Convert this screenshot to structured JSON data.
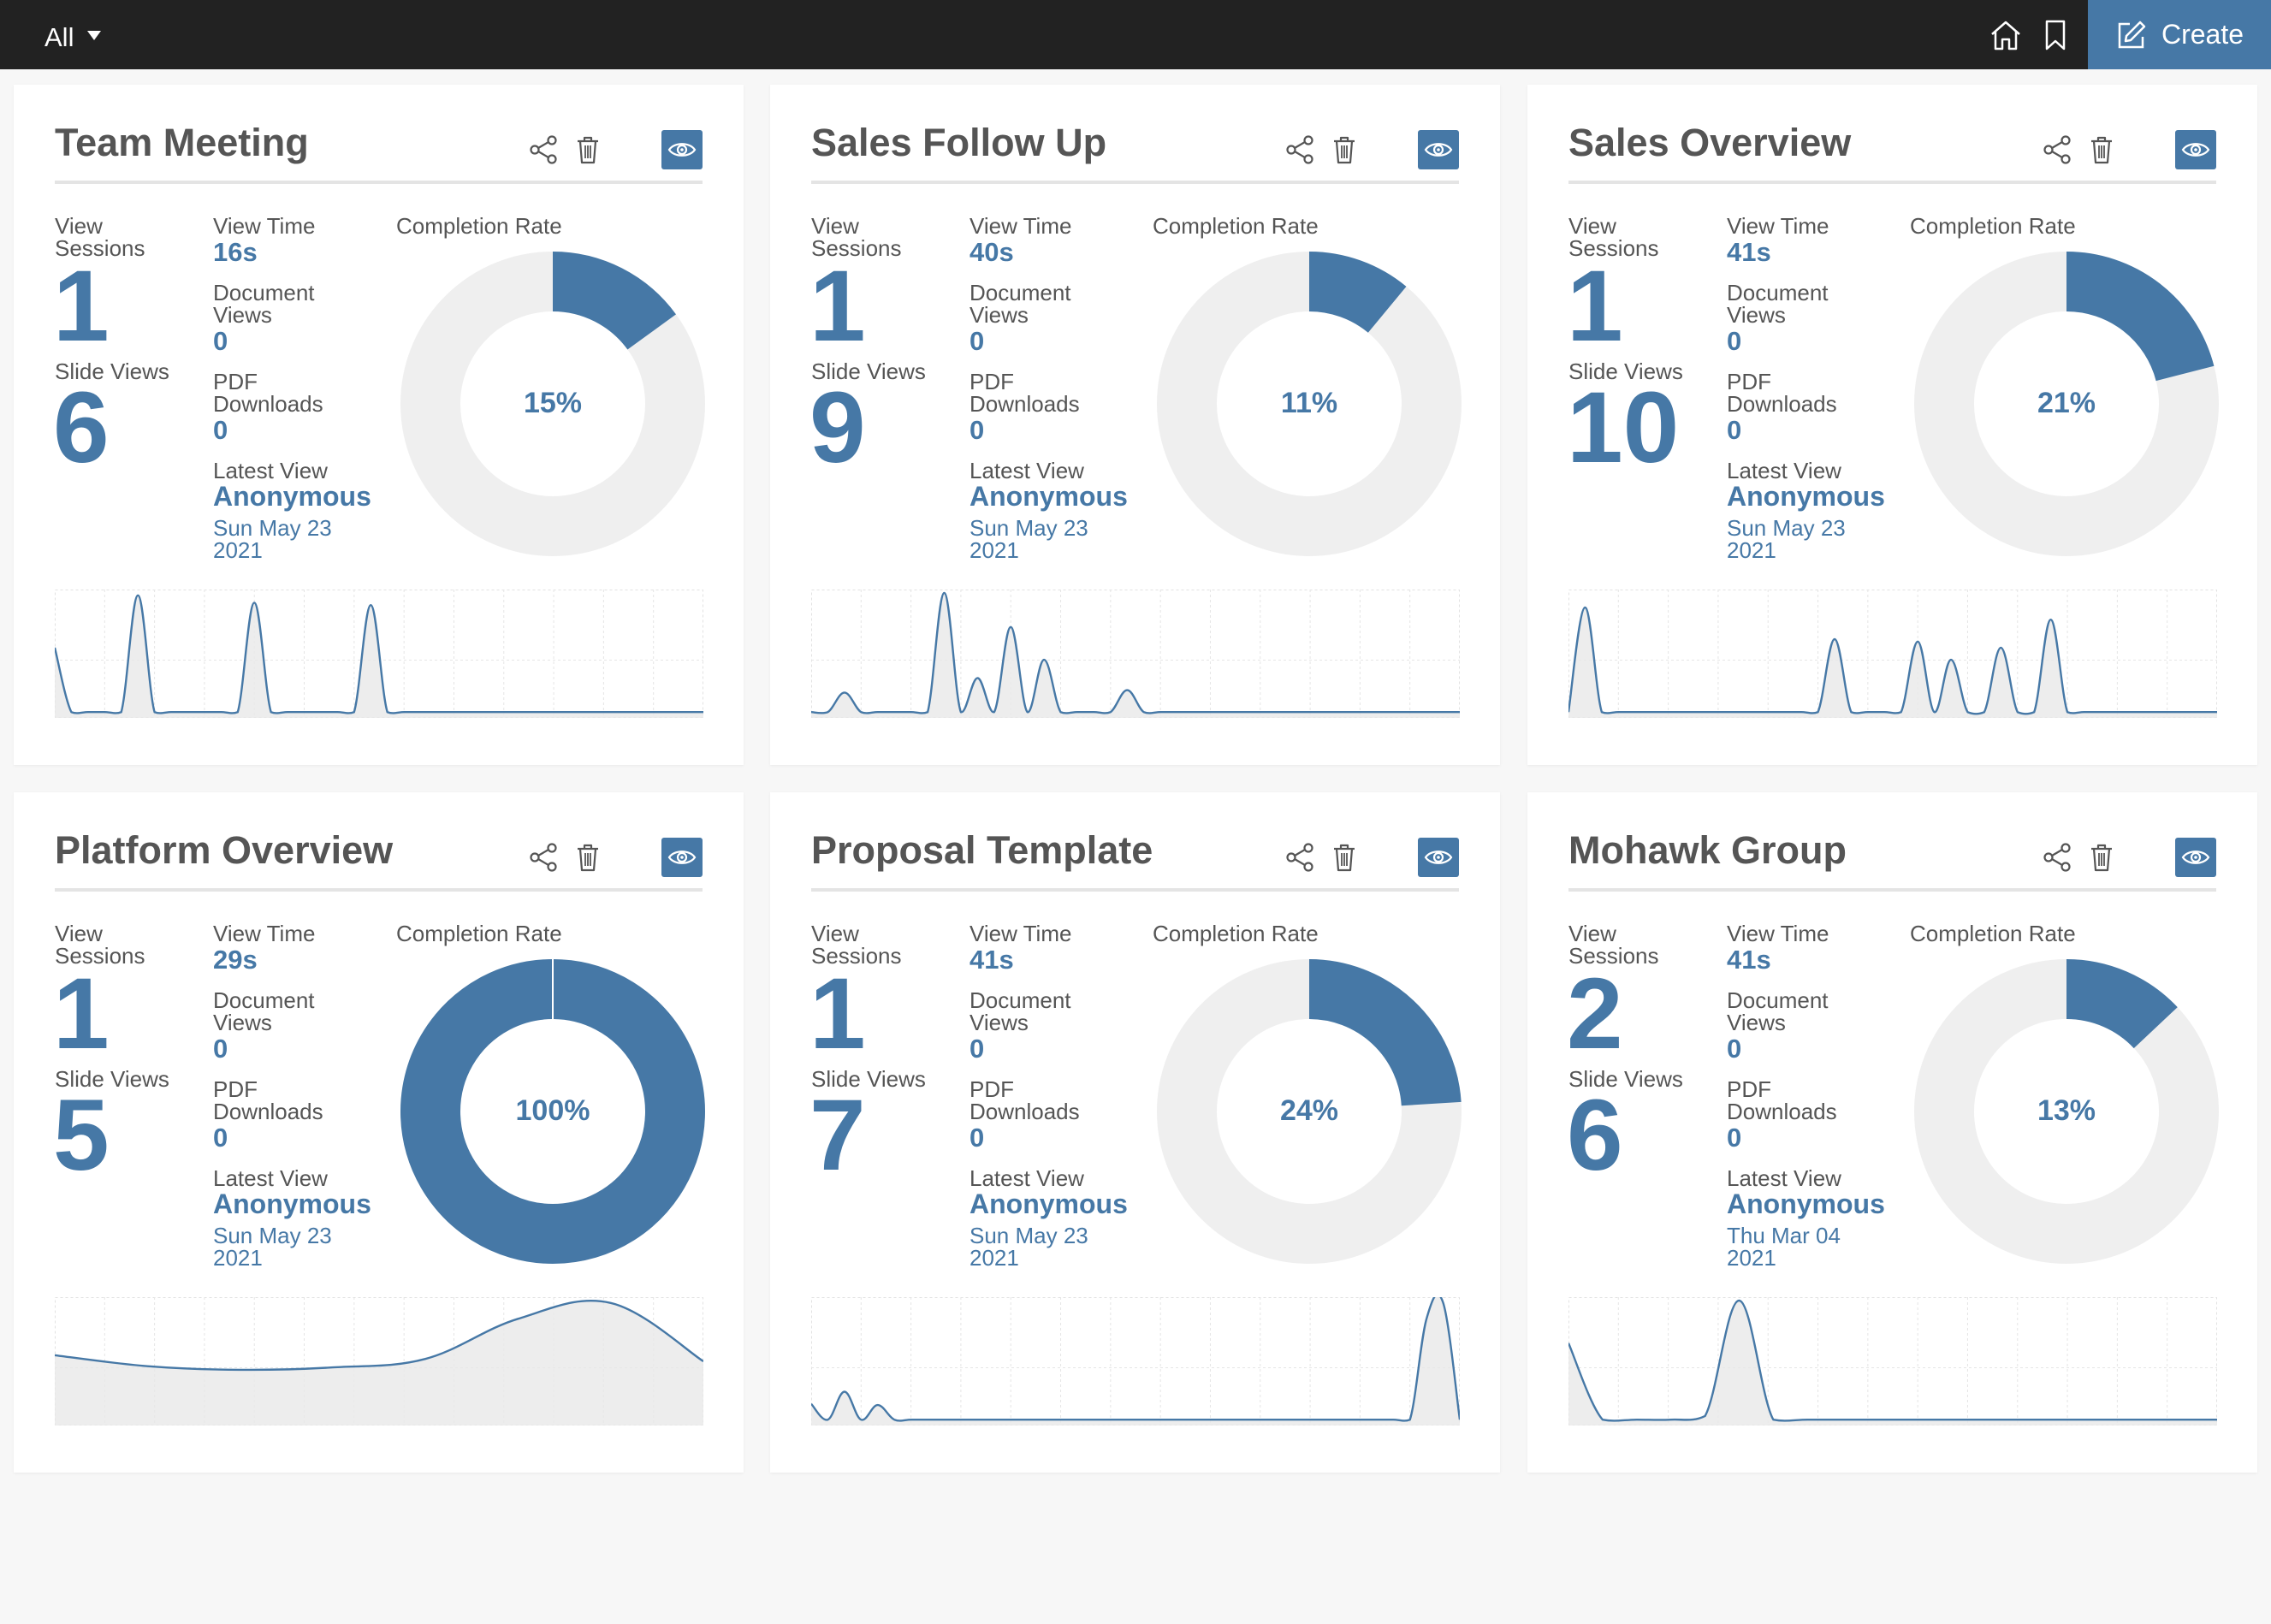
{
  "topbar": {
    "filter_label": "All",
    "create_label": "Create",
    "accent": "#4678a6"
  },
  "labels": {
    "view_sessions": "View Sessions",
    "view_sessions_l1": "View",
    "view_sessions_l2": "Sessions",
    "slide_views": "Slide Views",
    "view_time": "View Time",
    "document_views_l1": "Document",
    "document_views_l2": "Views",
    "pdf_downloads_l1": "PDF",
    "pdf_downloads_l2": "Downloads",
    "latest_view": "Latest View",
    "completion_rate": "Completion Rate"
  },
  "cards": [
    {
      "title": "Team Meeting",
      "view_sessions": "1",
      "slide_views": "6",
      "view_time": "16s",
      "document_views": "0",
      "pdf_downloads": "0",
      "latest_viewer": "Anonymous",
      "latest_date_l1": "Sun May 23",
      "latest_date_l2": "2021",
      "completion_pct": 15,
      "completion_label": "15%",
      "activity": [
        0.55,
        0.02,
        0.02,
        0.02,
        0.02,
        0.98,
        0.02,
        0.02,
        0.02,
        0.02,
        0.02,
        0.02,
        0.92,
        0.02,
        0.02,
        0.02,
        0.02,
        0.02,
        0.02,
        0.9,
        0.02,
        0.02,
        0.02,
        0.02,
        0.02,
        0.02,
        0.02,
        0.02,
        0.02,
        0.02,
        0.02,
        0.02,
        0.02,
        0.02,
        0.02,
        0.02,
        0.02,
        0.02,
        0.02,
        0.02
      ]
    },
    {
      "title": "Sales Follow Up",
      "view_sessions": "1",
      "slide_views": "9",
      "view_time": "40s",
      "document_views": "0",
      "pdf_downloads": "0",
      "latest_viewer": "Anonymous",
      "latest_date_l1": "Sun May 23",
      "latest_date_l2": "2021",
      "completion_pct": 11,
      "completion_label": "11%",
      "activity": [
        0.02,
        0.02,
        0.18,
        0.02,
        0.02,
        0.02,
        0.02,
        0.02,
        1.0,
        0.02,
        0.3,
        0.02,
        0.72,
        0.02,
        0.45,
        0.02,
        0.02,
        0.02,
        0.02,
        0.2,
        0.02,
        0.02,
        0.02,
        0.02,
        0.02,
        0.02,
        0.02,
        0.02,
        0.02,
        0.02,
        0.02,
        0.02,
        0.02,
        0.02,
        0.02,
        0.02,
        0.02,
        0.02,
        0.02,
        0.02
      ]
    },
    {
      "title": "Sales Overview",
      "view_sessions": "1",
      "slide_views": "10",
      "view_time": "41s",
      "document_views": "0",
      "pdf_downloads": "0",
      "latest_viewer": "Anonymous",
      "latest_date_l1": "Sun May 23",
      "latest_date_l2": "2021",
      "completion_pct": 21,
      "completion_label": "21%",
      "activity": [
        0.02,
        0.88,
        0.02,
        0.02,
        0.02,
        0.02,
        0.02,
        0.02,
        0.02,
        0.02,
        0.02,
        0.02,
        0.02,
        0.02,
        0.02,
        0.02,
        0.62,
        0.02,
        0.02,
        0.02,
        0.02,
        0.6,
        0.02,
        0.45,
        0.02,
        0.02,
        0.55,
        0.02,
        0.02,
        0.78,
        0.02,
        0.02,
        0.02,
        0.02,
        0.02,
        0.02,
        0.02,
        0.02,
        0.02,
        0.02
      ]
    },
    {
      "title": "Platform Overview",
      "view_sessions": "1",
      "slide_views": "5",
      "view_time": "29s",
      "document_views": "0",
      "pdf_downloads": "0",
      "latest_viewer": "Anonymous",
      "latest_date_l1": "Sun May 23",
      "latest_date_l2": "2021",
      "completion_pct": 100,
      "completion_label": "100%",
      "activity": [
        0.55,
        0.46,
        0.43,
        0.45,
        0.52,
        0.85,
        0.98,
        0.5
      ]
    },
    {
      "title": "Proposal Template",
      "view_sessions": "1",
      "slide_views": "7",
      "view_time": "41s",
      "document_views": "0",
      "pdf_downloads": "0",
      "latest_viewer": "Anonymous",
      "latest_date_l1": "Sun May 23",
      "latest_date_l2": "2021",
      "completion_pct": 24,
      "completion_label": "24%",
      "activity": [
        0.15,
        0.02,
        0.25,
        0.02,
        0.14,
        0.02,
        0.02,
        0.02,
        0.02,
        0.02,
        0.02,
        0.02,
        0.02,
        0.02,
        0.02,
        0.02,
        0.02,
        0.02,
        0.02,
        0.02,
        0.02,
        0.02,
        0.02,
        0.02,
        0.02,
        0.02,
        0.02,
        0.02,
        0.02,
        0.02,
        0.02,
        0.02,
        0.02,
        0.02,
        0.02,
        0.02,
        0.02,
        0.85,
        0.98,
        0.02
      ]
    },
    {
      "title": "Mohawk Group",
      "view_sessions": "2",
      "slide_views": "6",
      "view_time": "41s",
      "document_views": "0",
      "pdf_downloads": "0",
      "latest_viewer": "Anonymous",
      "latest_date_l1": "Thu Mar 04",
      "latest_date_l2": "2021",
      "completion_pct": 13,
      "completion_label": "13%",
      "activity": [
        0.65,
        0.02,
        0.02,
        0.02,
        0.05,
        1.0,
        0.02,
        0.02,
        0.02,
        0.02,
        0.02,
        0.02,
        0.02,
        0.02,
        0.02,
        0.02,
        0.02,
        0.02,
        0.02,
        0.02
      ]
    }
  ]
}
